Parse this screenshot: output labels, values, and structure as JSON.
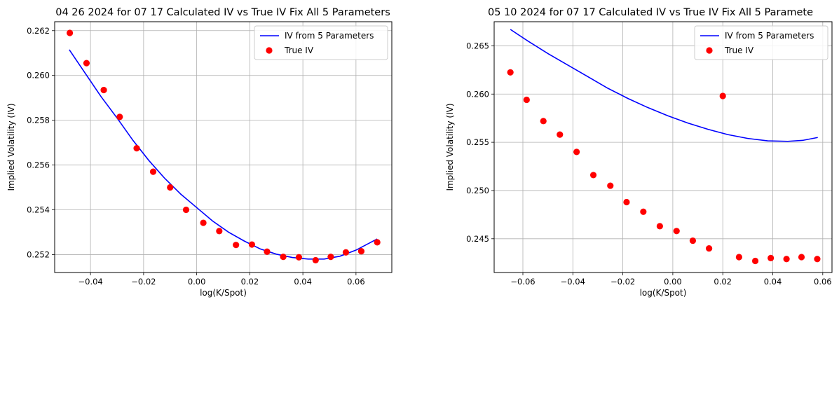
{
  "chart_data": [
    {
      "type": "line",
      "title": "04 26 2024 for 07 17 Calculated IV vs True IV Fix All 5 Parameters",
      "xlabel": "log(K/Spot)",
      "ylabel": "Implied Volatility (IV)",
      "xlim": [
        -0.0535,
        0.0735
      ],
      "ylim": [
        0.2512,
        0.2624
      ],
      "xticks": [
        -0.04,
        -0.02,
        0.0,
        0.02,
        0.04,
        0.06
      ],
      "xtick_labels": [
        "−0.04",
        "−0.02",
        "0.00",
        "0.02",
        "0.04",
        "0.06"
      ],
      "yticks": [
        0.252,
        0.254,
        0.256,
        0.258,
        0.26,
        0.262
      ],
      "ytick_labels": [
        "0.252",
        "0.254",
        "0.256",
        "0.258",
        "0.260",
        "0.262"
      ],
      "grid": true,
      "legend_position": "top-right",
      "series": [
        {
          "name": "IV from 5 Parameters",
          "kind": "line",
          "color": "#0000ff",
          "x": [
            -0.048,
            -0.042,
            -0.036,
            -0.03,
            -0.024,
            -0.018,
            -0.012,
            -0.006,
            0.0,
            0.006,
            0.012,
            0.018,
            0.024,
            0.03,
            0.036,
            0.042,
            0.048,
            0.054,
            0.06,
            0.068
          ],
          "y": [
            0.26115,
            0.2601,
            0.25905,
            0.2581,
            0.2571,
            0.2562,
            0.2554,
            0.2547,
            0.2541,
            0.2535,
            0.253,
            0.2526,
            0.25225,
            0.25202,
            0.25187,
            0.2518,
            0.2518,
            0.25193,
            0.2522,
            0.2527
          ]
        },
        {
          "name": "True IV",
          "kind": "scatter",
          "color": "#ff0000",
          "x": [
            -0.0478,
            -0.0415,
            -0.035,
            -0.029,
            -0.0226,
            -0.0164,
            -0.01,
            -0.004,
            0.0025,
            0.0085,
            0.0148,
            0.0208,
            0.0265,
            0.0326,
            0.0385,
            0.0448,
            0.0505,
            0.0562,
            0.062,
            0.068
          ],
          "y": [
            0.2619,
            0.26055,
            0.25935,
            0.25815,
            0.25675,
            0.2557,
            0.255,
            0.254,
            0.25342,
            0.25305,
            0.25243,
            0.25245,
            0.25213,
            0.2519,
            0.25188,
            0.25175,
            0.2519,
            0.2521,
            0.25215,
            0.25255
          ]
        }
      ]
    },
    {
      "type": "line",
      "title": "05 10 2024 for 07 17 Calculated IV vs True IV Fix All 5 Paramete",
      "xlabel": "log(K/Spot)",
      "ylabel": "Implied Volatility (IV)",
      "xlim": [
        -0.0715,
        0.0637
      ],
      "ylim": [
        0.2415,
        0.2675
      ],
      "xticks": [
        -0.06,
        -0.04,
        -0.02,
        0.0,
        0.02,
        0.04,
        0.06
      ],
      "xtick_labels": [
        "−0.06",
        "−0.04",
        "−0.02",
        "0.00",
        "0.02",
        "0.04",
        "0.06"
      ],
      "yticks": [
        0.245,
        0.25,
        0.255,
        0.26,
        0.265
      ],
      "ytick_labels": [
        "0.245",
        "0.250",
        "0.255",
        "0.260",
        "0.265"
      ],
      "grid": true,
      "legend_position": "top-right",
      "series": [
        {
          "name": "IV from 5 Parameters",
          "kind": "line",
          "color": "#0000ff",
          "x": [
            -0.065,
            -0.058,
            -0.05,
            -0.042,
            -0.034,
            -0.026,
            -0.018,
            -0.01,
            -0.002,
            0.006,
            0.014,
            0.022,
            0.03,
            0.038,
            0.046,
            0.052,
            0.058
          ],
          "y": [
            0.2667,
            0.2655,
            0.2642,
            0.263,
            0.2618,
            0.2606,
            0.25955,
            0.2586,
            0.25775,
            0.257,
            0.25635,
            0.2558,
            0.2554,
            0.25515,
            0.2551,
            0.2552,
            0.2555
          ]
        },
        {
          "name": "True IV",
          "kind": "scatter",
          "color": "#ff0000",
          "x": [
            -0.065,
            -0.0585,
            -0.0518,
            -0.0452,
            -0.0385,
            -0.0318,
            -0.025,
            -0.0185,
            -0.0118,
            -0.0052,
            0.0015,
            0.008,
            0.0145,
            0.02,
            0.0265,
            0.033,
            0.0392,
            0.0455,
            0.0515,
            0.0578
          ],
          "y": [
            0.26225,
            0.2594,
            0.2572,
            0.2558,
            0.254,
            0.2516,
            0.2505,
            0.2488,
            0.2478,
            0.2463,
            0.2458,
            0.2448,
            0.244,
            0.2598,
            0.2431,
            0.2427,
            0.243,
            0.2429,
            0.2431,
            0.2429
          ]
        }
      ]
    }
  ]
}
